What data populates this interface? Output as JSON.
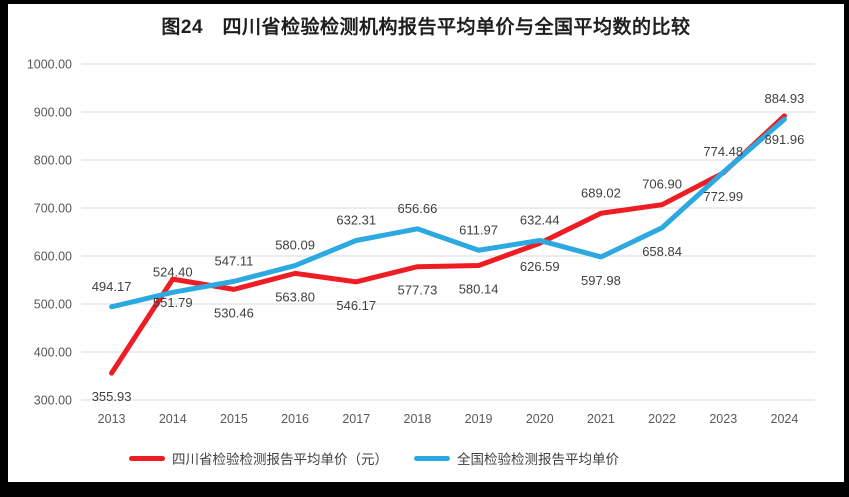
{
  "window": {
    "title": "图24　四川省检验检测机构报告平均单价与全国平均数的比较"
  },
  "chart_data": {
    "type": "line",
    "title": "图24　四川省检验检测机构报告平均单价与全国平均数的比较",
    "xlabel": "",
    "ylabel": "",
    "categories": [
      "2013",
      "2014",
      "2015",
      "2016",
      "2017",
      "2018",
      "2019",
      "2020",
      "2021",
      "2022",
      "2023",
      "2024"
    ],
    "series": [
      {
        "name": "四川省检验检测报告平均单价（元）",
        "color": "#EE1D23",
        "values": [
          355.93,
          551.79,
          530.46,
          563.8,
          546.17,
          577.73,
          580.14,
          626.59,
          689.02,
          706.9,
          772.99,
          891.96
        ],
        "label_sides": [
          "below",
          "below",
          "below",
          "below",
          "below",
          "below",
          "below",
          "below",
          "above",
          "above",
          "below",
          "below"
        ]
      },
      {
        "name": "全国检验检测报告平均单价",
        "color": "#2BA9E0",
        "values": [
          494.17,
          524.4,
          547.11,
          580.09,
          632.31,
          656.66,
          611.97,
          632.44,
          597.98,
          658.84,
          774.48,
          884.93
        ],
        "label_sides": [
          "above",
          "above",
          "above",
          "above",
          "above",
          "above",
          "above",
          "above",
          "below",
          "below",
          "above",
          "above"
        ]
      }
    ],
    "ylim": [
      300,
      1000
    ],
    "y_ticks": [
      "1000.00",
      "900.00",
      "800.00",
      "700.00",
      "600.00",
      "500.00",
      "400.00",
      "300.00"
    ],
    "grid": "horizontal-only",
    "legend_position": "bottom",
    "gridline_color": "#D9D9D9",
    "tick_text_color": "#595959",
    "data_label_color": "#3F3F3F"
  }
}
